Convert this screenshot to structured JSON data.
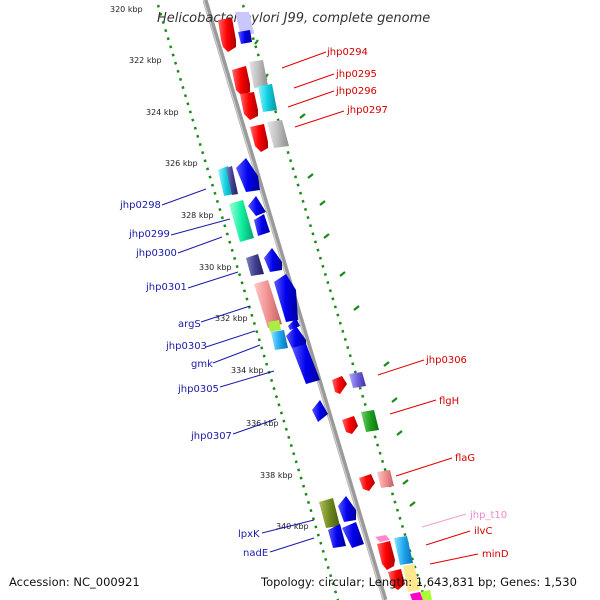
{
  "title": "Helicobacter pylori J99, complete genome",
  "accession": "Accession: NC_000921",
  "summary": "Topology: circular; Length: 1,643,831 bp; Genes: 1,530",
  "kbp_ticks": [
    "320 kbp",
    "322 kbp",
    "324 kbp",
    "326 kbp",
    "328 kbp",
    "330 kbp",
    "332 kbp",
    "334 kbp",
    "336 kbp",
    "338 kbp",
    "340 kbp"
  ],
  "labels_right": [
    "jhp0294",
    "jhp0295",
    "jhp0296",
    "jhp0297",
    "jhp0306",
    "flgH",
    "flaG",
    "jhp_t10",
    "ilvC",
    "minD"
  ],
  "labels_left": [
    "jhp0298",
    "jhp0299",
    "jhp0300",
    "jhp0301",
    "argS",
    "jhp0303",
    "gmk",
    "jhp0305",
    "jhp0307",
    "lpxK",
    "nadE"
  ],
  "colors": {
    "forward_strand": "#ff0000",
    "reverse_strand": "#0000ee",
    "backbone": "#888888",
    "tick_dots": "#1a8a1a"
  }
}
